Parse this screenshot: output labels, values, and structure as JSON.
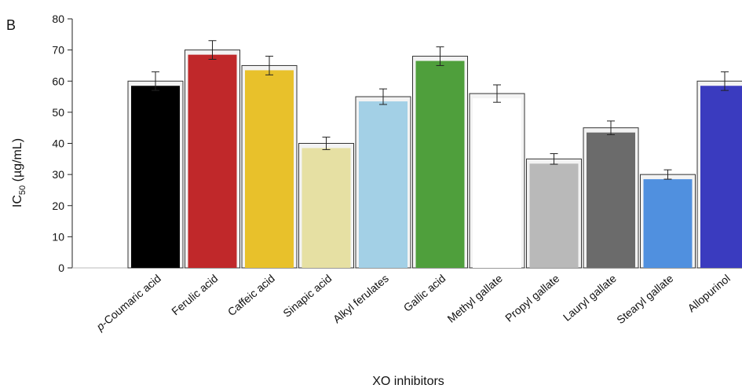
{
  "panel_label": "B",
  "chart_data": {
    "type": "bar",
    "xlabel": "XO inhibitors",
    "ylabel": {
      "base": "IC",
      "subscript": "50",
      "unit": " (µg/mL)"
    },
    "ylim": [
      0,
      80
    ],
    "yticks": [
      0,
      10,
      20,
      30,
      40,
      50,
      60,
      70,
      80
    ],
    "grid": false,
    "categories": [
      {
        "prefix": "p",
        "rest": "-Coumaric acid"
      },
      {
        "prefix": "",
        "rest": "Ferulic acid"
      },
      {
        "prefix": "",
        "rest": "Caffeic acid"
      },
      {
        "prefix": "",
        "rest": "Sinapic acid"
      },
      {
        "prefix": "",
        "rest": "Alkyl ferulates"
      },
      {
        "prefix": "",
        "rest": "Gallic acid"
      },
      {
        "prefix": "",
        "rest": "Methyl gallate"
      },
      {
        "prefix": "",
        "rest": "Propyl gallate"
      },
      {
        "prefix": "",
        "rest": "Lauryl gallate"
      },
      {
        "prefix": "",
        "rest": "Stearyl gallate"
      },
      {
        "prefix": "",
        "rest": "Allopurinol"
      }
    ],
    "values": [
      60,
      70,
      65,
      40,
      55,
      68,
      56,
      35,
      45,
      30,
      60
    ],
    "errors": [
      3,
      3,
      3,
      2,
      2.5,
      3,
      2.8,
      1.7,
      2.2,
      1.5,
      3
    ],
    "colors": [
      "#000000",
      "#c0282a",
      "#e8c12b",
      "#e6e0a3",
      "#a3d0e6",
      "#4f9f3c",
      "#ffffff",
      "#b9b9b9",
      "#6b6b6b",
      "#5090df",
      "#3a3bbf"
    ]
  }
}
